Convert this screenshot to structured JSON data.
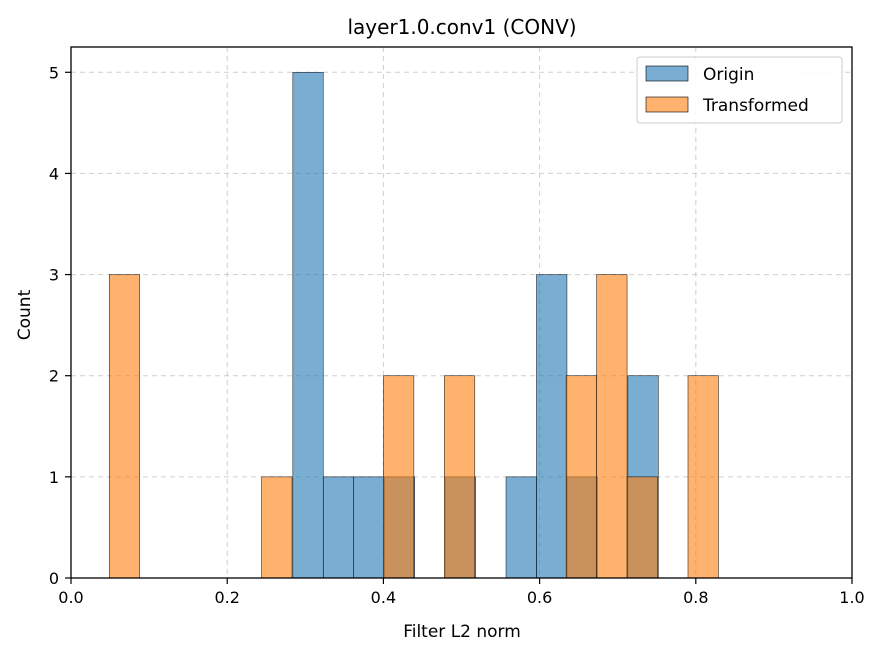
{
  "chart_data": {
    "type": "bar",
    "title": "layer1.0.conv1 (CONV)",
    "xlabel": "Filter L2 norm",
    "ylabel": "Count",
    "xlim": [
      0.0,
      1.0
    ],
    "ylim": [
      0,
      5.25
    ],
    "grid": true,
    "legend_position": "top-right",
    "x_ticks": [
      "0.0",
      "0.2",
      "0.4",
      "0.6",
      "0.8",
      "1.0"
    ],
    "x_tick_values": [
      0.0,
      0.2,
      0.4,
      0.6,
      0.8,
      1.0
    ],
    "y_ticks": [
      "0",
      "1",
      "2",
      "3",
      "4",
      "5"
    ],
    "y_tick_values": [
      0,
      1,
      2,
      3,
      4,
      5
    ],
    "series": [
      {
        "name": "Origin",
        "color": "#1f77b4",
        "opacity": 0.6,
        "bins": [
          {
            "x0": 0.284,
            "x1": 0.323,
            "count": 5
          },
          {
            "x0": 0.323,
            "x1": 0.362,
            "count": 1
          },
          {
            "x0": 0.362,
            "x1": 0.401,
            "count": 1
          },
          {
            "x0": 0.401,
            "x1": 0.44,
            "count": 1
          },
          {
            "x0": 0.479,
            "x1": 0.518,
            "count": 1
          },
          {
            "x0": 0.557,
            "x1": 0.596,
            "count": 1
          },
          {
            "x0": 0.596,
            "x1": 0.635,
            "count": 3
          },
          {
            "x0": 0.635,
            "x1": 0.674,
            "count": 1
          },
          {
            "x0": 0.713,
            "x1": 0.752,
            "count": 2
          }
        ]
      },
      {
        "name": "Transformed",
        "color": "#ff7f0e",
        "opacity": 0.6,
        "bins": [
          {
            "x0": 0.049,
            "x1": 0.088,
            "count": 3
          },
          {
            "x0": 0.244,
            "x1": 0.283,
            "count": 1
          },
          {
            "x0": 0.4,
            "x1": 0.439,
            "count": 2
          },
          {
            "x0": 0.478,
            "x1": 0.517,
            "count": 2
          },
          {
            "x0": 0.634,
            "x1": 0.673,
            "count": 2
          },
          {
            "x0": 0.673,
            "x1": 0.712,
            "count": 3
          },
          {
            "x0": 0.712,
            "x1": 0.751,
            "count": 1
          },
          {
            "x0": 0.79,
            "x1": 0.829,
            "count": 2
          }
        ]
      }
    ]
  }
}
